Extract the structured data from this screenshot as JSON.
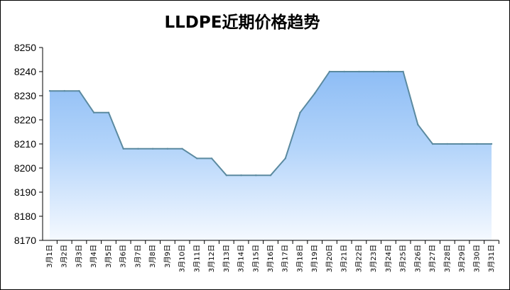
{
  "chart_data": {
    "type": "area",
    "title": "LLDPE近期价格趋势",
    "xlabel": "",
    "ylabel": "",
    "ylim": [
      8170,
      8250
    ],
    "yticks": [
      8250,
      8240,
      8230,
      8220,
      8210,
      8200,
      8190,
      8180,
      8170
    ],
    "grid": false,
    "legend": "none",
    "categories": [
      "3月1日",
      "3月2日",
      "3月3日",
      "3月4日",
      "3月5日",
      "3月6日",
      "3月7日",
      "3月8日",
      "3月9日",
      "3月10日",
      "3月11日",
      "3月12日",
      "3月13日",
      "3月14日",
      "3月15日",
      "3月16日",
      "3月17日",
      "3月18日",
      "3月19日",
      "3月20日",
      "3月21日",
      "3月22日",
      "3月23日",
      "3月24日",
      "3月25日",
      "3月26日",
      "3月27日",
      "3月28日",
      "3月29日",
      "3月30日",
      "3月31日"
    ],
    "values": [
      8232,
      8232,
      8232,
      8223,
      8223,
      8208,
      8208,
      8208,
      8208,
      8208,
      8204,
      8204,
      8197,
      8197,
      8197,
      8197,
      8204,
      8223,
      8231,
      8240,
      8240,
      8240,
      8240,
      8240,
      8240,
      8218,
      8210,
      8210,
      8210,
      8210,
      8210
    ],
    "colors": {
      "line": "#5b8aa0",
      "fill_top": "#8ebdf5",
      "fill_mid": "#b3d4fa",
      "fill_bottom": "#f5f9ff",
      "axis": "#000000"
    }
  }
}
